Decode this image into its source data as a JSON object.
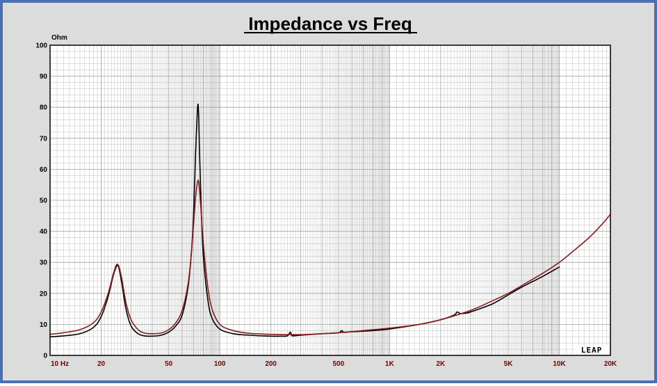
{
  "chart_data": {
    "type": "line",
    "title": "Impedance vs Freq",
    "ylabel": "Ohm",
    "xscale": "log",
    "xlim": [
      10,
      20000
    ],
    "ylim": [
      0,
      100
    ],
    "grid": true,
    "x_ticks": [
      {
        "value": 10,
        "label": "10 Hz"
      },
      {
        "value": 20,
        "label": "20"
      },
      {
        "value": 50,
        "label": "50"
      },
      {
        "value": 100,
        "label": "100"
      },
      {
        "value": 200,
        "label": "200"
      },
      {
        "value": 500,
        "label": "500"
      },
      {
        "value": 1000,
        "label": "1K"
      },
      {
        "value": 2000,
        "label": "2K"
      },
      {
        "value": 5000,
        "label": "5K"
      },
      {
        "value": 10000,
        "label": "10K"
      },
      {
        "value": 20000,
        "label": "20K"
      }
    ],
    "y_ticks": [
      0,
      10,
      20,
      30,
      40,
      50,
      60,
      70,
      80,
      90,
      100
    ],
    "brand": "LEAP",
    "colors": {
      "plot_bg": "#ffffff",
      "grid": "#a0a0a0",
      "frame": "#4a6fb5",
      "panel": "#dcdcdc"
    },
    "series": [
      {
        "color": "#000000",
        "x": [
          10,
          12,
          15,
          18,
          20,
          22,
          23.5,
          24.5,
          25,
          25.5,
          26.5,
          28,
          30,
          33,
          36,
          40,
          45,
          50,
          55,
          60,
          65,
          68,
          70,
          72,
          74,
          75,
          76,
          78,
          80,
          85,
          90,
          100,
          120,
          150,
          200,
          230,
          250,
          260,
          265,
          270,
          300,
          400,
          500,
          520,
          540,
          560,
          600,
          800,
          1000,
          1500,
          2000,
          2400,
          2500,
          2600,
          2800,
          3000,
          4000,
          5000,
          6000,
          8000,
          10000
        ],
        "y": [
          6.0,
          6.3,
          7.0,
          9.0,
          12.5,
          19.0,
          25.5,
          28.5,
          29.0,
          28.0,
          23.0,
          15.0,
          9.5,
          7.0,
          6.3,
          6.2,
          6.5,
          7.5,
          9.5,
          13.0,
          22.0,
          33.0,
          45.0,
          65.0,
          80.0,
          78.0,
          65.0,
          45.0,
          32.0,
          18.0,
          12.0,
          8.5,
          7.0,
          6.5,
          6.2,
          6.2,
          6.3,
          7.5,
          6.5,
          6.3,
          6.5,
          7.0,
          7.3,
          8.0,
          7.4,
          7.5,
          7.6,
          8.0,
          8.5,
          10.0,
          11.5,
          13.0,
          14.0,
          13.5,
          13.6,
          14.0,
          16.5,
          19.5,
          22.0,
          25.5,
          28.5
        ]
      },
      {
        "color": "#8b1a1a",
        "x": [
          10,
          12,
          15,
          18,
          20,
          22,
          23.5,
          24.5,
          25,
          25.5,
          26.5,
          28,
          30,
          33,
          36,
          40,
          45,
          50,
          55,
          60,
          65,
          68,
          70,
          72,
          74,
          75,
          76,
          78,
          80,
          85,
          90,
          100,
          120,
          150,
          200,
          300,
          400,
          500,
          700,
          1000,
          1500,
          2000,
          3000,
          4000,
          5000,
          6000,
          8000,
          10000,
          12000,
          15000,
          18000,
          20000
        ],
        "y": [
          6.8,
          7.3,
          8.3,
          10.5,
          14.0,
          20.0,
          26.0,
          29.0,
          29.3,
          28.5,
          24.5,
          17.0,
          11.5,
          8.3,
          7.2,
          7.0,
          7.2,
          8.3,
          10.5,
          14.5,
          23.0,
          33.0,
          42.0,
          51.0,
          56.0,
          56.0,
          53.0,
          45.0,
          36.0,
          22.0,
          15.0,
          10.0,
          8.0,
          7.1,
          6.8,
          6.7,
          7.0,
          7.3,
          8.0,
          8.8,
          10.0,
          11.5,
          14.5,
          17.5,
          20.0,
          22.5,
          26.5,
          30.0,
          33.5,
          38.0,
          42.5,
          45.5
        ]
      }
    ]
  }
}
